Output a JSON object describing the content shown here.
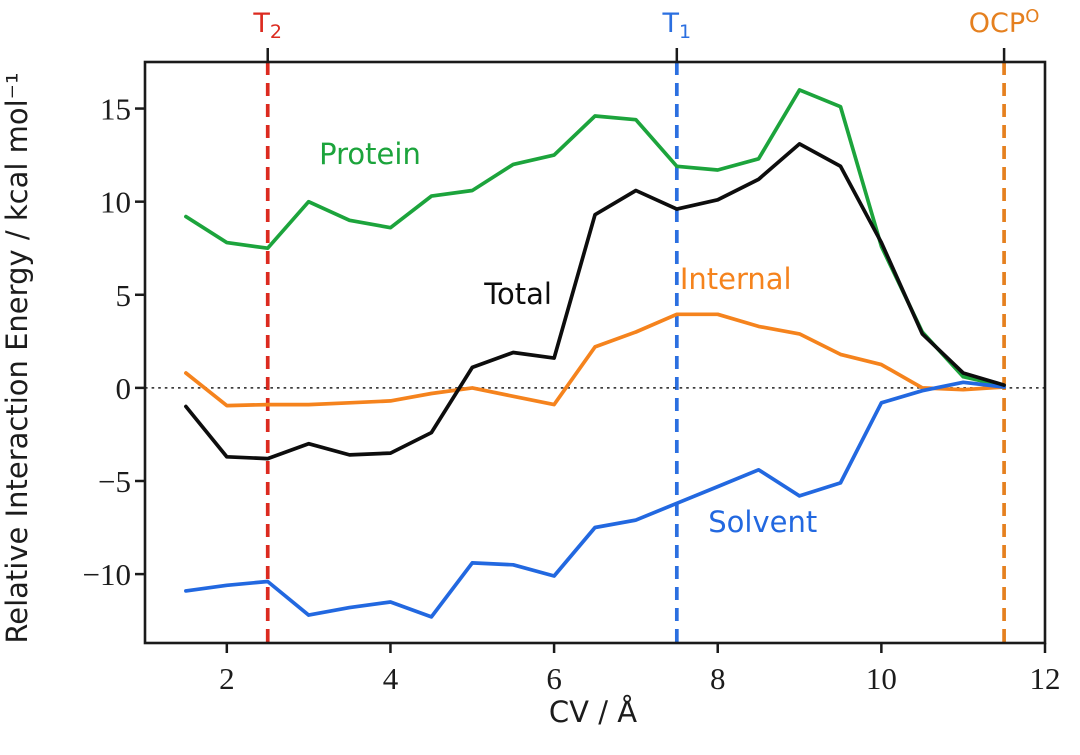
{
  "chart_data": {
    "type": "line",
    "title": "",
    "xlabel": "CV / Å",
    "ylabel": "Relative Interaction Energy / kcal mol⁻¹",
    "xlim": [
      1,
      12
    ],
    "ylim": [
      -13.7,
      17.5
    ],
    "x_ticks": [
      2,
      4,
      6,
      8,
      10,
      12
    ],
    "y_ticks": [
      -10,
      -5,
      0,
      5,
      10,
      15
    ],
    "grid": false,
    "zero_line_y": 0,
    "legend_position": "inline-annotations",
    "x": [
      1.5,
      2.0,
      2.5,
      3.0,
      3.5,
      4.0,
      4.5,
      5.0,
      5.5,
      6.0,
      6.5,
      7.0,
      7.5,
      8.0,
      8.5,
      9.0,
      9.5,
      10.0,
      10.5,
      11.0,
      11.5
    ],
    "series": [
      {
        "name": "Protein",
        "color": "#1ca43c",
        "values": [
          9.2,
          7.8,
          7.5,
          10.0,
          9.0,
          8.6,
          10.3,
          10.6,
          12.0,
          12.5,
          14.6,
          14.4,
          11.9,
          11.7,
          12.3,
          16.0,
          15.1,
          7.6,
          3.0,
          0.6,
          0.1
        ],
        "label_pos": {
          "x": 3.75,
          "y": 12.45
        }
      },
      {
        "name": "Internal",
        "color": "#f5831d",
        "values": [
          0.8,
          -0.95,
          -0.9,
          -0.9,
          -0.8,
          -0.7,
          -0.3,
          0.0,
          -0.45,
          -0.9,
          2.2,
          3.0,
          3.95,
          3.95,
          3.3,
          2.9,
          1.8,
          1.25,
          0.0,
          -0.1,
          0.05
        ],
        "label_pos": {
          "x": 8.22,
          "y": 5.74
        }
      },
      {
        "name": "Solvent",
        "color": "#2268e0",
        "values": [
          -10.9,
          -10.6,
          -10.4,
          -12.2,
          -11.8,
          -11.5,
          -12.3,
          -9.4,
          -9.5,
          -10.1,
          -7.5,
          -7.1,
          -6.2,
          -5.3,
          -4.4,
          -5.8,
          -5.1,
          -0.8,
          -0.15,
          0.3,
          0.05
        ],
        "label_pos": {
          "x": 8.55,
          "y": -7.31
        }
      },
      {
        "name": "Total",
        "color": "#0d0d0d",
        "values": [
          -1.0,
          -3.7,
          -3.8,
          -3.0,
          -3.6,
          -3.5,
          -2.4,
          1.1,
          1.9,
          1.6,
          9.3,
          10.6,
          9.6,
          10.1,
          11.2,
          13.1,
          11.9,
          7.8,
          2.9,
          0.8,
          0.15
        ],
        "label_pos": {
          "x": 5.56,
          "y": 4.94
        }
      }
    ],
    "vlines": [
      {
        "x": 2.5,
        "color": "#dc2a1f",
        "label_base": "T",
        "label_script": "2",
        "script_type": "sub",
        "label": "T2"
      },
      {
        "x": 7.5,
        "color": "#2b6fe0",
        "label_base": "T",
        "label_script": "1",
        "script_type": "sub",
        "label": "T1"
      },
      {
        "x": 11.5,
        "color": "#e5801f",
        "label_base": "OCP",
        "label_script": "O",
        "script_type": "sup",
        "label": "OCPO"
      }
    ]
  },
  "style": {
    "axis_color": "#1a1a1a",
    "zero_line_color": "#222222",
    "background": "#ffffff"
  }
}
